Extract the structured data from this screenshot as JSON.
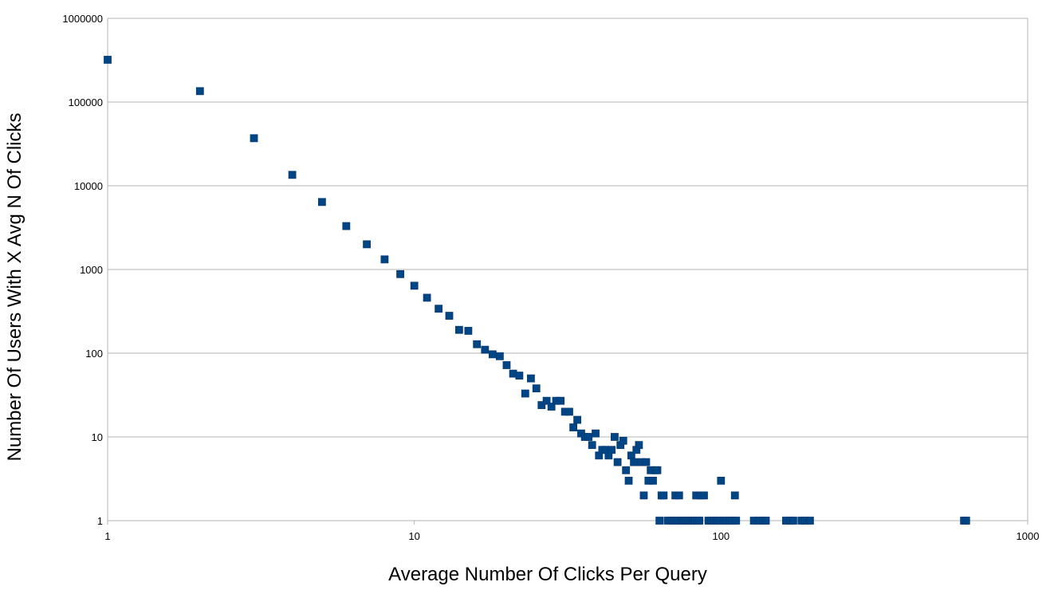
{
  "chart_data": {
    "type": "scatter",
    "title": "",
    "xlabel": "Average Number Of Clicks Per Query",
    "ylabel": "Number Of Users With X Avg N Of Clicks",
    "x_scale": "log",
    "y_scale": "log",
    "xlim": [
      1,
      1000
    ],
    "ylim": [
      1,
      1000000
    ],
    "x_ticks": [
      "1",
      "10",
      "100",
      "1000"
    ],
    "y_ticks": [
      "1",
      "10",
      "100",
      "1000",
      "10000",
      "100000",
      "1000000"
    ],
    "grid": "horizontal",
    "legend": "none",
    "marker_color": "#004586",
    "series": [
      {
        "points": [
          [
            1,
            320000
          ],
          [
            2,
            135000
          ],
          [
            3,
            37000
          ],
          [
            4,
            13500
          ],
          [
            5,
            6400
          ],
          [
            6,
            3300
          ],
          [
            7,
            2000
          ],
          [
            8,
            1320
          ],
          [
            9,
            880
          ],
          [
            10,
            640
          ],
          [
            11,
            460
          ],
          [
            12,
            340
          ],
          [
            13,
            280
          ],
          [
            14,
            190
          ],
          [
            15,
            185
          ],
          [
            16,
            128
          ],
          [
            17,
            110
          ],
          [
            18,
            97
          ],
          [
            19,
            92
          ],
          [
            20,
            72
          ],
          [
            21,
            57
          ],
          [
            22,
            54
          ],
          [
            23,
            33
          ],
          [
            24,
            50
          ],
          [
            25,
            38
          ],
          [
            26,
            24
          ],
          [
            27,
            27
          ],
          [
            28,
            23
          ],
          [
            29,
            27
          ],
          [
            30,
            27
          ],
          [
            31,
            20
          ],
          [
            32,
            20
          ],
          [
            33,
            13
          ],
          [
            34,
            16
          ],
          [
            35,
            11
          ],
          [
            36,
            10
          ],
          [
            37,
            10
          ],
          [
            38,
            8
          ],
          [
            39,
            11
          ],
          [
            40,
            6
          ],
          [
            41,
            7
          ],
          [
            42,
            7
          ],
          [
            43,
            6
          ],
          [
            44,
            7
          ],
          [
            45,
            10
          ],
          [
            46,
            5
          ],
          [
            47,
            8
          ],
          [
            48,
            9
          ],
          [
            49,
            4
          ],
          [
            50,
            3
          ],
          [
            51,
            6
          ],
          [
            52,
            5
          ],
          [
            53,
            7
          ],
          [
            54,
            8
          ],
          [
            55,
            5
          ],
          [
            56,
            2
          ],
          [
            57,
            5
          ],
          [
            58,
            3
          ],
          [
            59,
            4
          ],
          [
            60,
            3
          ],
          [
            61,
            4
          ],
          [
            62,
            4
          ],
          [
            63,
            1
          ],
          [
            64,
            2
          ],
          [
            65,
            2
          ],
          [
            67,
            1
          ],
          [
            69,
            1
          ],
          [
            70,
            1
          ],
          [
            71,
            2
          ],
          [
            72,
            1
          ],
          [
            73,
            2
          ],
          [
            74,
            1
          ],
          [
            75,
            1
          ],
          [
            76,
            1
          ],
          [
            77,
            1
          ],
          [
            78,
            1
          ],
          [
            79,
            1
          ],
          [
            80,
            1
          ],
          [
            81,
            1
          ],
          [
            82,
            1
          ],
          [
            83,
            2
          ],
          [
            84,
            1
          ],
          [
            85,
            1
          ],
          [
            86,
            2
          ],
          [
            88,
            2
          ],
          [
            91,
            1
          ],
          [
            93,
            1
          ],
          [
            95,
            1
          ],
          [
            97,
            1
          ],
          [
            99,
            1
          ],
          [
            100,
            3
          ],
          [
            102,
            1
          ],
          [
            104,
            1
          ],
          [
            107,
            1
          ],
          [
            109,
            1
          ],
          [
            111,
            2
          ],
          [
            112,
            1
          ],
          [
            128,
            1
          ],
          [
            133,
            1
          ],
          [
            137,
            1
          ],
          [
            140,
            1
          ],
          [
            163,
            1
          ],
          [
            168,
            1
          ],
          [
            172,
            1
          ],
          [
            183,
            1
          ],
          [
            188,
            1
          ],
          [
            195,
            1
          ],
          [
            620,
            1
          ],
          [
            630,
            1
          ]
        ]
      }
    ]
  }
}
